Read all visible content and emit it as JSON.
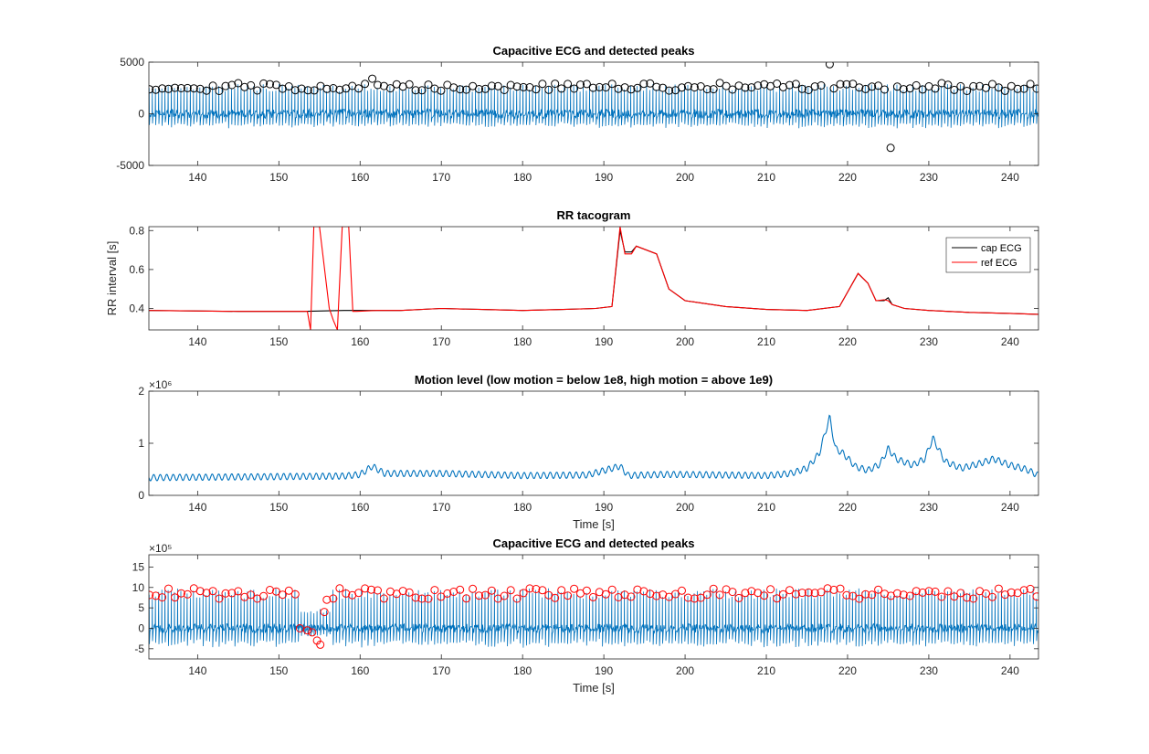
{
  "chart_data": [
    {
      "type": "line",
      "title": "Capacitive ECG and detected peaks",
      "xlabel": "",
      "ylabel": "",
      "xlim": [
        134,
        243.5
      ],
      "ylim": [
        -5000,
        5000
      ],
      "xticks": [
        140,
        150,
        160,
        170,
        180,
        190,
        200,
        210,
        220,
        230,
        240
      ],
      "yticks": [
        -5000,
        0,
        5000
      ],
      "ytick_labels": [
        "-5000",
        "0",
        "5000"
      ],
      "exponent_label": "",
      "series": [
        {
          "type": "line",
          "color": "#0072BD",
          "signal": "ecg_spikes",
          "baseline": 0,
          "spike_height": 2500,
          "beat_interval_s": 0.39
        },
        {
          "type": "scatter",
          "marker": "circle-open",
          "color": "#000000",
          "peak_level": 2600,
          "outliers": [
            [
              161.5,
              3400
            ],
            [
              217.8,
              4800
            ],
            [
              225.3,
              -3300
            ]
          ]
        }
      ],
      "legend": null,
      "grid": false
    },
    {
      "type": "line",
      "title": "RR tacogram",
      "xlabel": "",
      "ylabel": "RR interval [s]",
      "xlim": [
        134,
        243.5
      ],
      "ylim": [
        0.29,
        0.82
      ],
      "xticks": [
        140,
        150,
        160,
        170,
        180,
        190,
        200,
        210,
        220,
        230,
        240
      ],
      "yticks": [
        0.4,
        0.6,
        0.8
      ],
      "ytick_labels": [
        "0.4",
        "0.6",
        "0.8"
      ],
      "exponent_label": "",
      "series": [
        {
          "name": "cap ECG",
          "color": "#000000",
          "x": [
            134,
            145,
            153,
            158,
            165,
            170,
            175,
            180,
            185,
            189,
            191,
            192,
            192.6,
            193.4,
            194,
            196.5,
            198,
            200,
            205,
            210,
            215,
            219,
            221.3,
            222.5,
            223.5,
            224.5,
            225,
            225.5,
            227,
            230,
            235,
            240,
            243.5
          ],
          "y": [
            0.39,
            0.385,
            0.385,
            0.39,
            0.39,
            0.4,
            0.395,
            0.39,
            0.395,
            0.4,
            0.41,
            0.8,
            0.69,
            0.69,
            0.72,
            0.68,
            0.5,
            0.44,
            0.41,
            0.395,
            0.39,
            0.41,
            0.58,
            0.53,
            0.44,
            0.44,
            0.455,
            0.42,
            0.4,
            0.39,
            0.38,
            0.375,
            0.37
          ]
        },
        {
          "name": "ref ECG",
          "color": "#FF0000",
          "x": [
            134,
            145,
            153.5,
            153.9,
            154.3,
            155,
            156.2,
            156.7,
            157.2,
            157.8,
            158.6,
            159.1,
            159.6,
            162,
            165,
            170,
            175,
            180,
            185,
            189,
            191,
            192,
            192.6,
            193.4,
            194,
            196.5,
            198,
            200,
            205,
            210,
            215,
            219,
            221.3,
            222.5,
            223.5,
            224.5,
            225,
            225.5,
            227,
            230,
            235,
            240,
            243.5
          ],
          "y": [
            0.39,
            0.385,
            0.385,
            0.29,
            0.82,
            0.82,
            0.4,
            0.34,
            0.29,
            0.82,
            0.82,
            0.385,
            0.385,
            0.39,
            0.39,
            0.4,
            0.395,
            0.39,
            0.395,
            0.4,
            0.41,
            0.82,
            0.68,
            0.68,
            0.72,
            0.68,
            0.5,
            0.44,
            0.41,
            0.395,
            0.39,
            0.41,
            0.58,
            0.53,
            0.44,
            0.445,
            0.44,
            0.42,
            0.4,
            0.39,
            0.38,
            0.375,
            0.37
          ]
        }
      ],
      "legend": {
        "placement": "top-right",
        "entries": [
          "cap ECG",
          "ref ECG"
        ]
      },
      "grid": false
    },
    {
      "type": "line",
      "title": "Motion level (low motion = below 1e8, high motion = above 1e9)",
      "xlabel": "Time [s]",
      "ylabel": "",
      "xlim": [
        134,
        243.5
      ],
      "ylim": [
        0,
        2000000
      ],
      "xticks": [
        140,
        150,
        160,
        170,
        180,
        190,
        200,
        210,
        220,
        230,
        240
      ],
      "yticks": [
        0,
        1000000,
        2000000
      ],
      "ytick_labels": [
        "0",
        "1",
        "2"
      ],
      "exponent_label": "×10⁶",
      "series": [
        {
          "color": "#0072BD",
          "x": [
            134,
            150,
            158,
            160,
            161.5,
            163,
            170,
            180,
            188,
            191,
            192,
            193,
            197,
            200,
            210,
            213,
            215,
            216.5,
            217.8,
            218.5,
            219.5,
            221,
            222.5,
            224,
            225,
            226,
            228,
            229.5,
            230.5,
            232,
            234,
            236,
            238,
            240,
            242,
            243.5
          ],
          "y": [
            340000,
            360000,
            370000,
            400000,
            560000,
            420000,
            420000,
            380000,
            390000,
            520000,
            560000,
            380000,
            400000,
            400000,
            380000,
            420000,
            520000,
            800000,
            1500000,
            900000,
            800000,
            550000,
            480000,
            600000,
            900000,
            700000,
            580000,
            700000,
            1100000,
            650000,
            520000,
            600000,
            700000,
            580000,
            500000,
            380000
          ],
          "ripple": 60000,
          "ripple_period_s": 0.8
        }
      ],
      "legend": null,
      "grid": false
    },
    {
      "type": "line",
      "title": "Capacitive ECG and detected peaks",
      "xlabel": "Time [s]",
      "ylabel": "",
      "xlim": [
        134,
        243.5
      ],
      "ylim": [
        -750000,
        1800000
      ],
      "xticks": [
        140,
        150,
        160,
        170,
        180,
        190,
        200,
        210,
        220,
        230,
        240
      ],
      "yticks": [
        -500000,
        0,
        500000,
        1000000,
        1500000
      ],
      "ytick_labels": [
        "-5",
        "0",
        "5",
        "10",
        "15"
      ],
      "exponent_label": "×10⁵",
      "series": [
        {
          "type": "line",
          "color": "#0072BD",
          "signal": "ecg_spikes",
          "baseline": 0,
          "spike_height": 850000,
          "beat_interval_s": 0.39,
          "dropout": [
            152.5,
            156.5
          ]
        },
        {
          "type": "scatter",
          "marker": "circle-open",
          "color": "#FF0000",
          "peak_level": 850000,
          "outliers": [
            [
              152.6,
              0
            ],
            [
              153.5,
              -50000
            ],
            [
              154.1,
              -100000
            ],
            [
              154.7,
              -300000
            ],
            [
              155.1,
              -400000
            ],
            [
              155.6,
              400000
            ],
            [
              155.9,
              700000
            ]
          ]
        }
      ],
      "legend": null,
      "grid": false
    }
  ]
}
